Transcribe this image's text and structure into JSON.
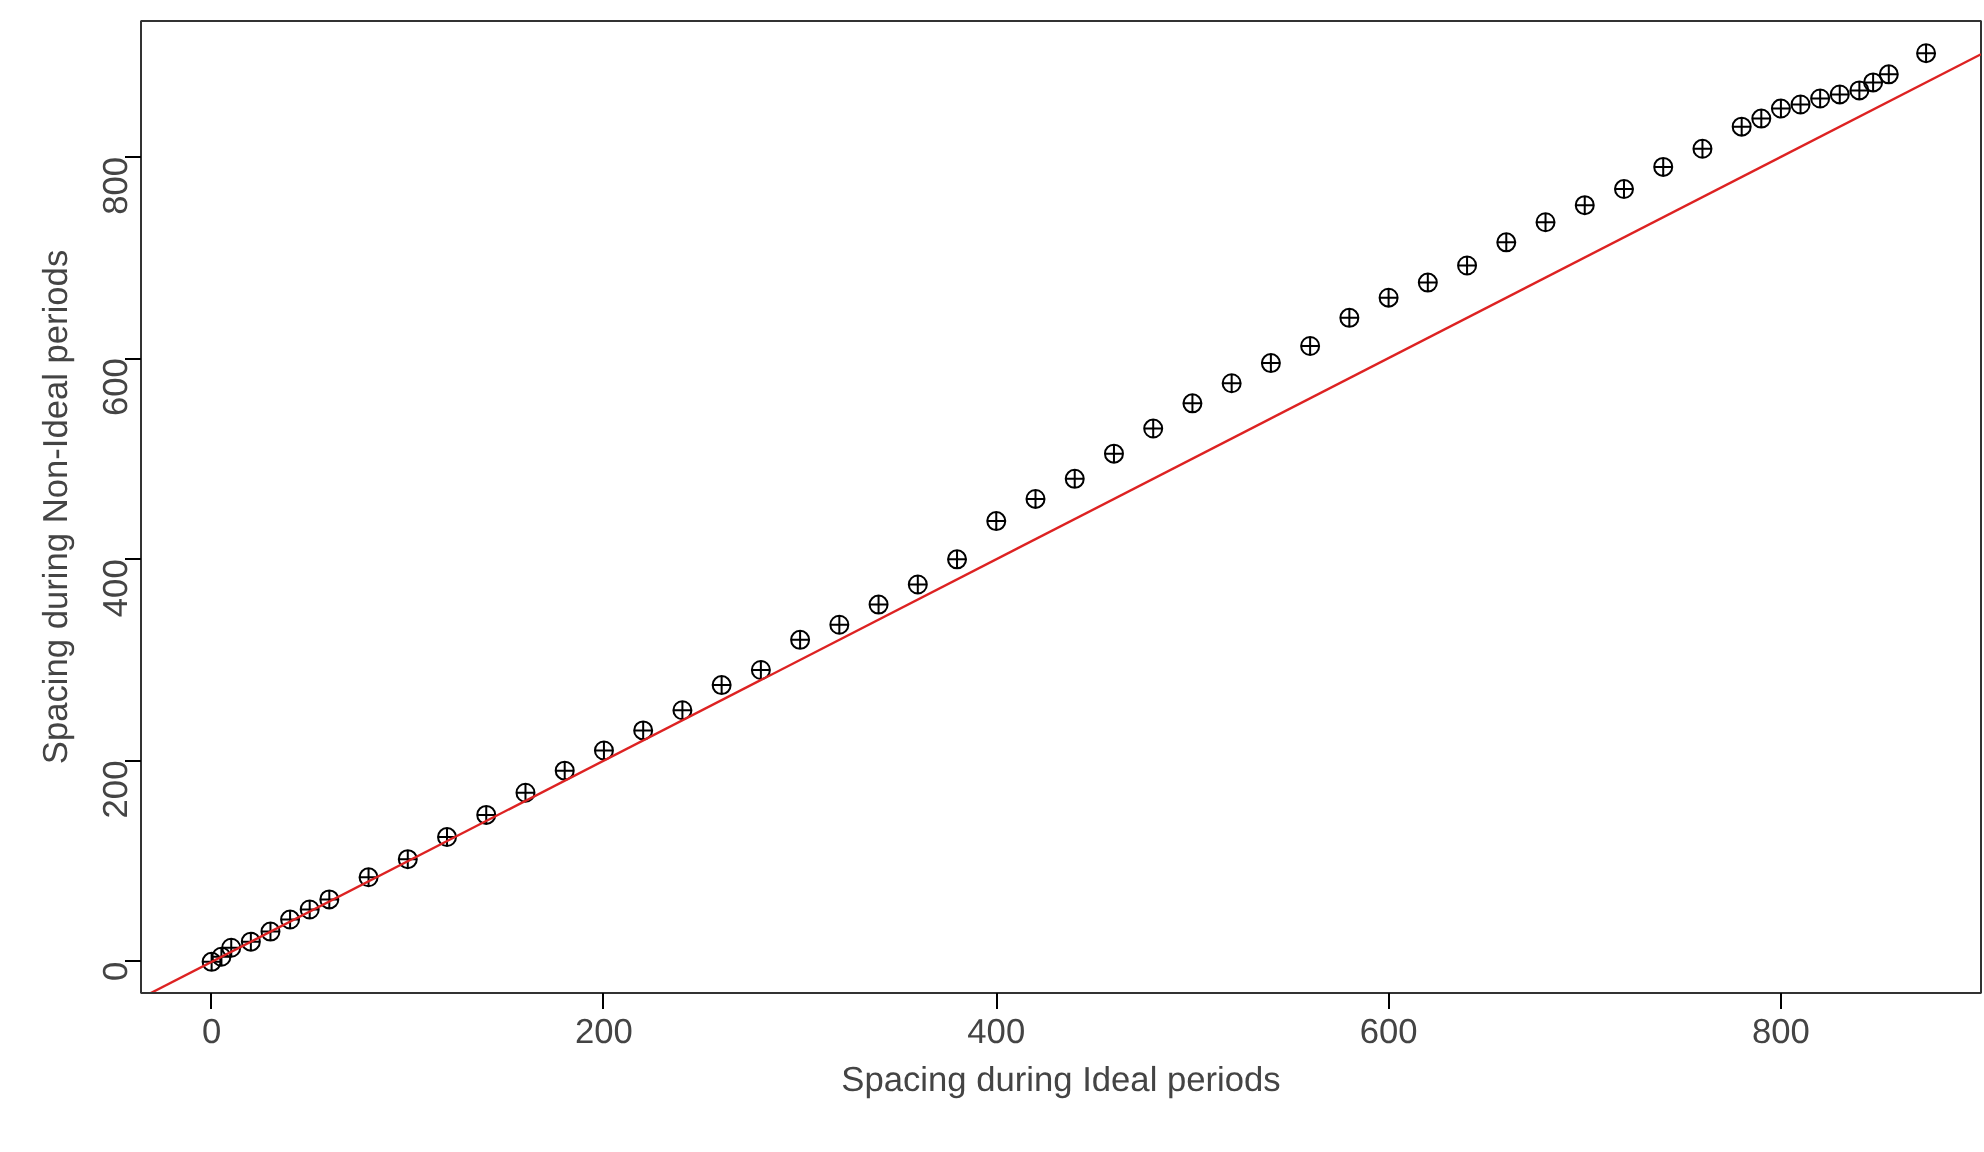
{
  "chart_data": {
    "type": "scatter",
    "xlabel": "Spacing during Ideal periods",
    "ylabel": "Spacing during Non-Ideal periods",
    "xlim": [
      -36,
      902
    ],
    "ylim": [
      -31,
      935
    ],
    "xticks": [
      0,
      200,
      400,
      600,
      800
    ],
    "yticks": [
      0,
      200,
      400,
      600,
      800
    ],
    "grid": false,
    "marker": "circle",
    "series": [
      {
        "color": "#000000",
        "x": [
          0,
          5,
          10,
          20,
          30,
          40,
          50,
          60,
          80,
          100,
          120,
          140,
          160,
          180,
          200,
          220,
          240,
          260,
          280,
          300,
          320,
          340,
          360,
          380,
          400,
          420,
          440,
          460,
          480,
          500,
          520,
          540,
          560,
          580,
          600,
          620,
          640,
          660,
          680,
          700,
          720,
          740,
          760,
          780,
          790,
          800,
          810,
          820,
          830,
          840,
          847,
          855,
          874
        ],
        "values": [
          0,
          5,
          14,
          20,
          30,
          42,
          52,
          62,
          84,
          102,
          124,
          146,
          168,
          190,
          210,
          230,
          250,
          275,
          290,
          320,
          335,
          355,
          375,
          400,
          438,
          460,
          480,
          505,
          530,
          555,
          575,
          595,
          612,
          640,
          660,
          675,
          692,
          715,
          735,
          752,
          768,
          790,
          808,
          830,
          838,
          848,
          852,
          858,
          862,
          866,
          874,
          882,
          903
        ]
      },
      {
        "type": "line",
        "color": "#dd2222",
        "x": [
          -31,
          902
        ],
        "values": [
          -31,
          902
        ],
        "marker": "none"
      }
    ]
  }
}
